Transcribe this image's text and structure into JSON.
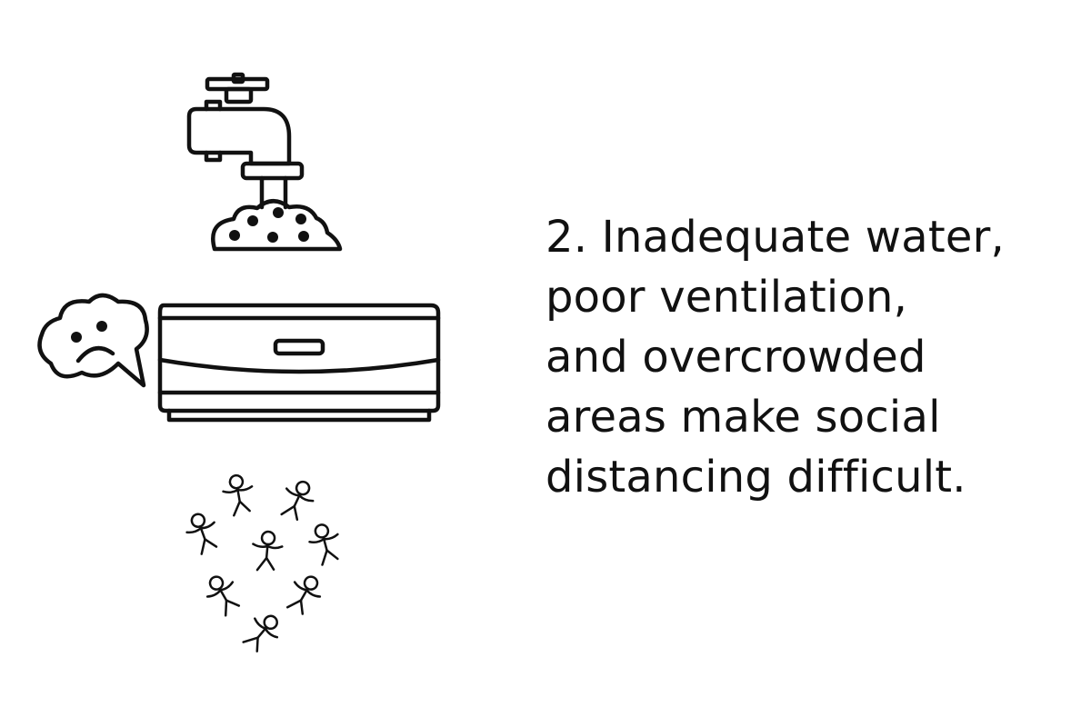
{
  "caption": {
    "lines": [
      "2. Inadequate water,",
      "poor ventilation,",
      "and overcrowded",
      "areas make social",
      "distancing difficult."
    ]
  },
  "icons": {
    "faucet": "faucet-icon",
    "dirty_water": "dirty-water-icon",
    "sad_speech_bubble": "sad-speech-bubble-icon",
    "air_conditioner": "air-conditioner-icon",
    "crowd": "crowd-of-people-icon"
  },
  "colors": {
    "stroke": "#111111",
    "background": "#ffffff"
  }
}
